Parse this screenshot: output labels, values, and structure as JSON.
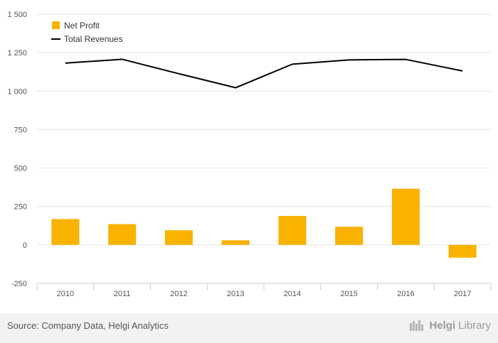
{
  "chart_data": {
    "type": "bar",
    "categories": [
      "2010",
      "2011",
      "2012",
      "2013",
      "2014",
      "2015",
      "2016",
      "2017"
    ],
    "series": [
      {
        "name": "Net Profit",
        "type": "bar",
        "color": "#f9b200",
        "values": [
          168,
          135,
          95,
          30,
          188,
          118,
          365,
          -83
        ]
      },
      {
        "name": "Total Revenues",
        "type": "line",
        "color": "#000000",
        "values": [
          1182,
          1207,
          1113,
          1022,
          1175,
          1203,
          1206,
          1131
        ]
      }
    ],
    "ylim": [
      -250,
      1500
    ],
    "yticks": [
      -250,
      0,
      250,
      500,
      750,
      1000,
      1250,
      1500
    ],
    "ytick_labels": [
      "-250",
      "0",
      "250",
      "500",
      "750",
      "1 000",
      "1 250",
      "1 500"
    ],
    "legend_position": "top-left",
    "grid": true
  },
  "footer": {
    "source": "Source: Company Data, Helgi Analytics",
    "brand_part1": "Helgi",
    "brand_part2": "Library"
  }
}
